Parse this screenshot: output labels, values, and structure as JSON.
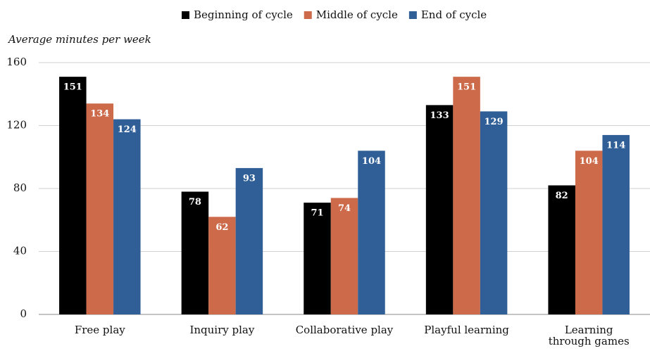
{
  "chart_data": {
    "type": "bar",
    "y_label": "Average minutes per week",
    "categories": [
      "Free play",
      "Inquiry play",
      "Collaborative play",
      "Playful learning",
      "Learning\nthrough games"
    ],
    "series": [
      {
        "name": "Beginning of cycle",
        "color": "#000000",
        "values": [
          151,
          78,
          71,
          133,
          82
        ]
      },
      {
        "name": "Middle of cycle",
        "color": "#cc6a4a",
        "values": [
          134,
          62,
          74,
          151,
          104
        ]
      },
      {
        "name": "End of cycle",
        "color": "#2f5f96",
        "values": [
          124,
          93,
          104,
          129,
          114
        ]
      }
    ],
    "ylim": [
      0,
      160
    ],
    "yticks": [
      0,
      40,
      80,
      120,
      160
    ],
    "grid": true,
    "legend": "top"
  }
}
